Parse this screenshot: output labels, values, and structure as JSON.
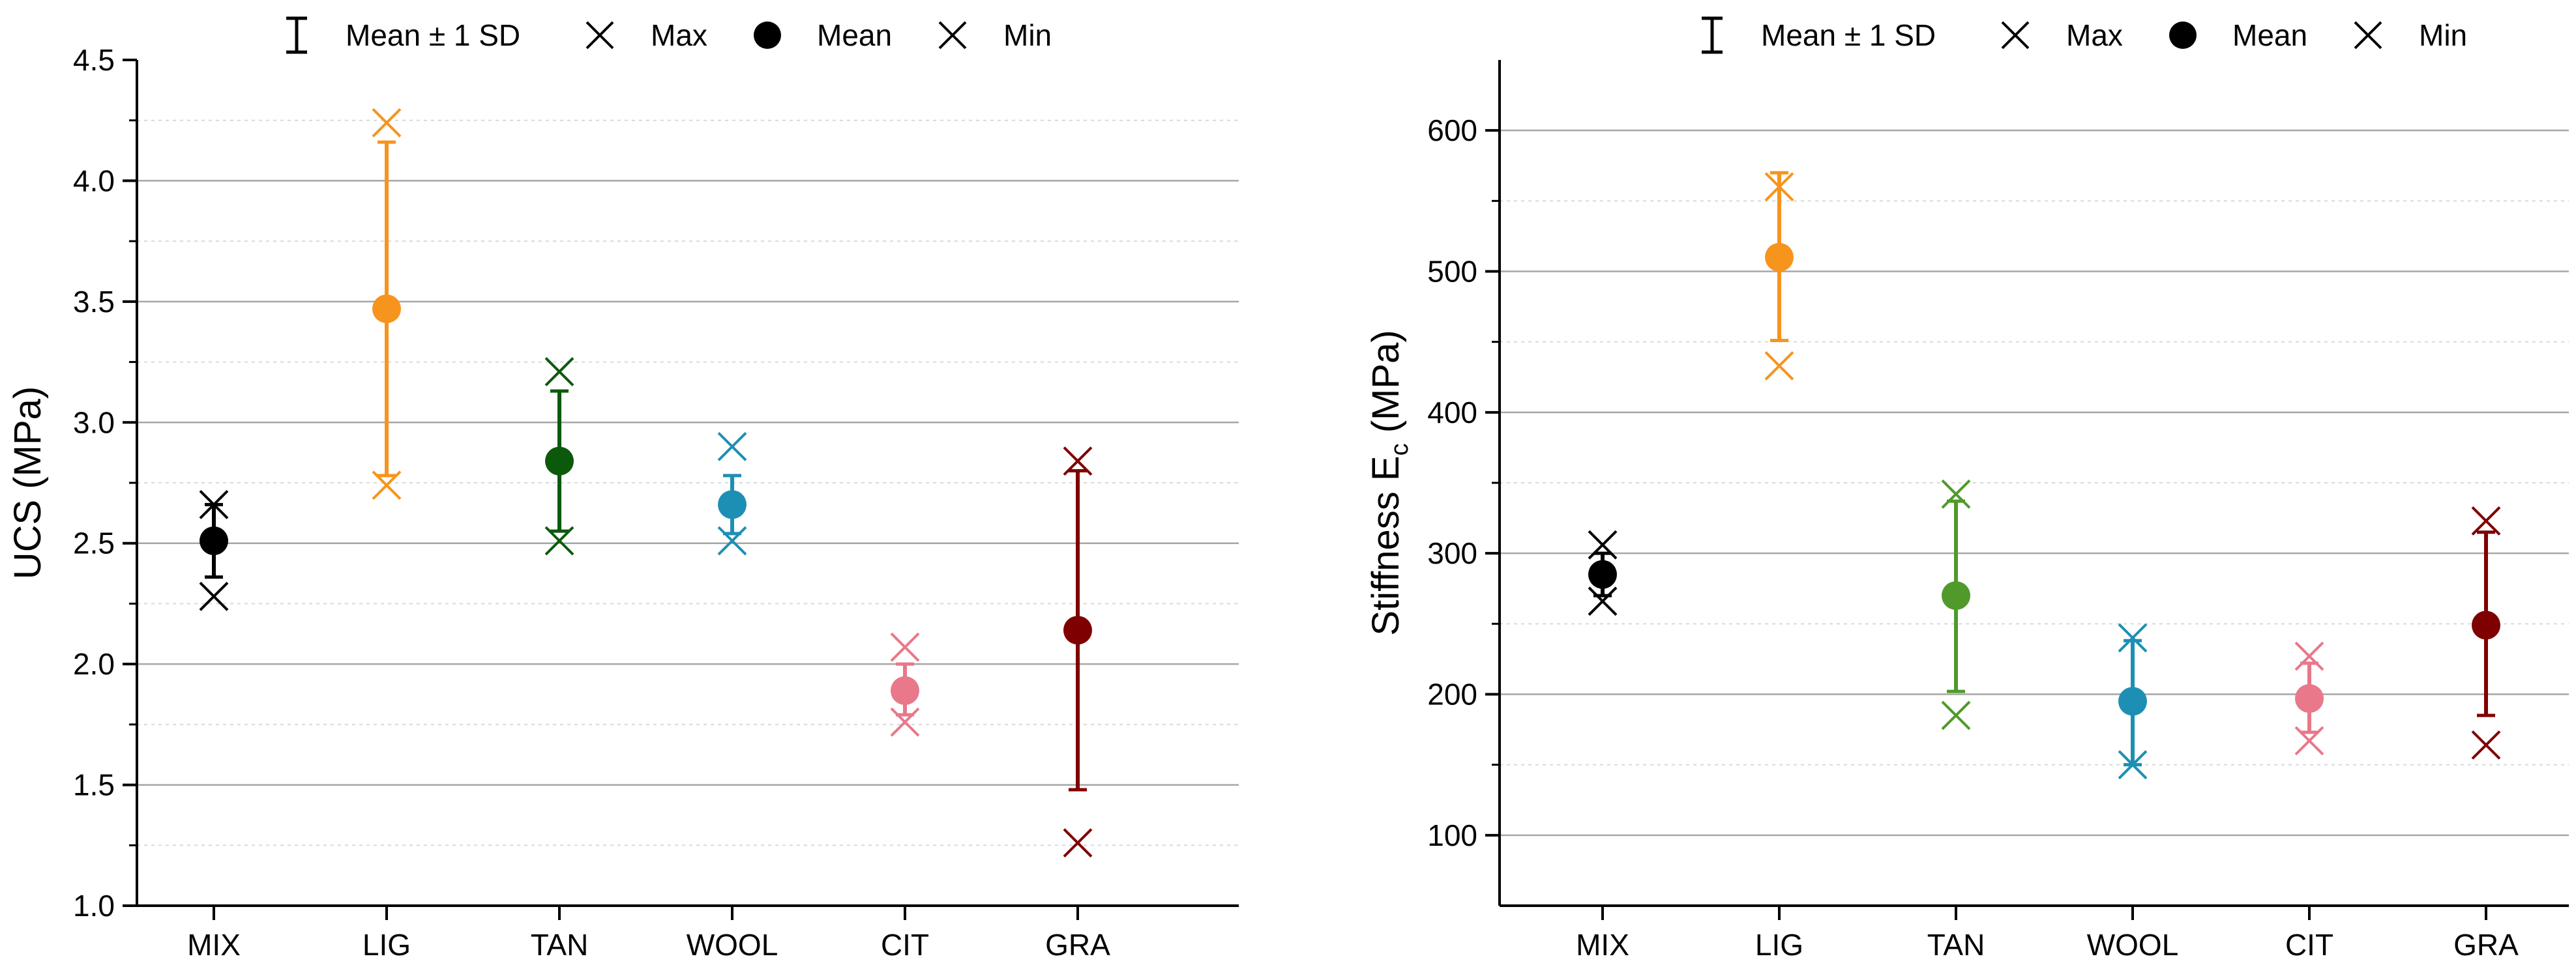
{
  "legend": {
    "sd_label": "Mean ± 1 SD",
    "max_label": "Max",
    "mean_label": "Mean",
    "min_label": "Min"
  },
  "chart_data": [
    {
      "type": "scatter",
      "title": "",
      "xlabel": "",
      "ylabel": "UCS (MPa)",
      "ylabel_sub": "",
      "ylabel_suffix": "",
      "ylim": [
        1.0,
        4.5
      ],
      "major_ticks": [
        1.0,
        1.5,
        2.0,
        2.5,
        3.0,
        3.5,
        4.0,
        4.5
      ],
      "tick_labels": [
        "1.0",
        "1.5",
        "2.0",
        "2.5",
        "3.0",
        "3.5",
        "4.0",
        "4.5"
      ],
      "grid_major": [
        1.5,
        2.0,
        2.5,
        3.0,
        3.5,
        4.0
      ],
      "grid_minor": [
        1.25,
        1.75,
        2.25,
        2.75,
        3.25,
        3.75,
        4.25
      ],
      "categories": [
        "MIX",
        "LIG",
        "TAN",
        "WOOL",
        "CIT",
        "GRA"
      ],
      "colors": [
        "#000000",
        "#f7941d",
        "#0b5a0b",
        "#1d8fb4",
        "#e8788a",
        "#7f0000"
      ],
      "mean": [
        2.51,
        3.47,
        2.84,
        2.66,
        1.89,
        2.14
      ],
      "sd_low": [
        2.36,
        2.78,
        2.55,
        2.54,
        1.79,
        1.48
      ],
      "sd_high": [
        2.66,
        4.16,
        3.13,
        2.78,
        2.0,
        2.8
      ],
      "max": [
        2.66,
        4.24,
        3.21,
        2.9,
        2.07,
        2.84
      ],
      "min": [
        2.28,
        2.74,
        2.51,
        2.51,
        1.76,
        1.26
      ],
      "legend_position": "top"
    },
    {
      "type": "scatter",
      "title": "",
      "xlabel": "",
      "ylabel": "Stiffness E",
      "ylabel_sub": "c",
      "ylabel_suffix": " (MPa)",
      "ylim": [
        50,
        650
      ],
      "major_ticks": [
        100,
        200,
        300,
        400,
        500,
        600
      ],
      "tick_labels": [
        "100",
        "200",
        "300",
        "400",
        "500",
        "600"
      ],
      "grid_major": [
        100,
        200,
        300,
        400,
        500,
        600
      ],
      "grid_minor": [
        150,
        250,
        350,
        450,
        550
      ],
      "categories": [
        "MIX",
        "LIG",
        "TAN",
        "WOOL",
        "CIT",
        "GRA"
      ],
      "colors": [
        "#000000",
        "#f7941d",
        "#4f9a2a",
        "#1d8fb4",
        "#e8788a",
        "#7f0000"
      ],
      "mean": [
        285,
        510,
        270,
        195,
        197,
        249
      ],
      "sd_low": [
        270,
        451,
        202,
        150,
        173,
        185
      ],
      "sd_high": [
        300,
        570,
        337,
        238,
        222,
        315
      ],
      "max": [
        306,
        560,
        342,
        240,
        227,
        323
      ],
      "min": [
        266,
        433,
        185,
        150,
        167,
        164
      ],
      "legend_position": "top"
    }
  ]
}
